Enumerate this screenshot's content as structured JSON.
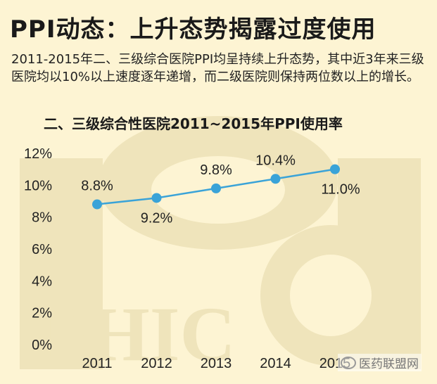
{
  "header": {
    "title": "PPI动态：上升态势揭露过度使用"
  },
  "intro": {
    "text": "2011-2015年二、三级综合医院PPI均呈持续上升态势，其中近3年来三级医院均以10%以上速度逐年递增，而二级医院则保持两位数以上的增长。"
  },
  "watermark": {
    "logo_text": "PHIC",
    "brand": "医药联盟网"
  },
  "colors": {
    "background": "#fdf4d3",
    "watermark": "#efe4bb",
    "series_line": "#3aa3d8",
    "marker": "#3aa3d8"
  },
  "chart_data": {
    "type": "line",
    "title": "二、三级综合性医院2011~2015年PPI使用率",
    "xlabel": "",
    "ylabel": "",
    "categories": [
      "2011",
      "2012",
      "2013",
      "2014",
      "2015"
    ],
    "series": [
      {
        "values": [
          8.8,
          9.2,
          9.8,
          10.4,
          11.0
        ],
        "labels": [
          "8.8%",
          "9.2%",
          "9.8%",
          "10.4%",
          "11.0%"
        ]
      }
    ],
    "ylim": [
      0,
      12
    ],
    "yticks": [
      "0%",
      "2%",
      "4%",
      "6%",
      "8%",
      "10%",
      "12%"
    ],
    "grid": false,
    "legend": "none"
  }
}
